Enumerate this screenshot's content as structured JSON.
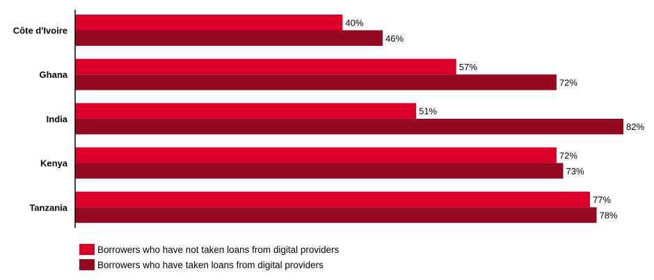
{
  "chart_data": {
    "type": "bar",
    "orientation": "horizontal",
    "categories": [
      "Côte d'Ivoire",
      "Ghana",
      "India",
      "Kenya",
      "Tanzania"
    ],
    "series": [
      {
        "name": "Borrowers who have not taken loans from digital providers",
        "values": [
          40,
          57,
          51,
          72,
          77
        ],
        "color": "#dc0028"
      },
      {
        "name": "Borrowers who have taken loans from digital providers",
        "values": [
          46,
          72,
          82,
          73,
          78
        ],
        "color": "#960a23"
      }
    ],
    "value_suffix": "%",
    "xlim": [
      0,
      82
    ],
    "grid": false,
    "legend_position": "bottom-left"
  }
}
